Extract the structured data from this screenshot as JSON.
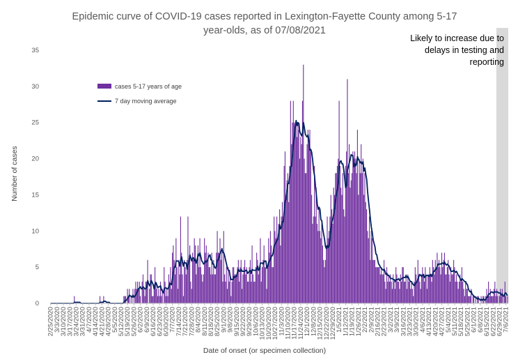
{
  "chart_data": {
    "type": "bar",
    "title_lines": [
      "Epidemic curve of COVID-19 cases reported in Lexington-Fayette County among 5-17",
      "year-olds, as of 07/08/2021"
    ],
    "xlabel": "Date of onset (or specimen collection)",
    "ylabel": "Number of cases",
    "ylim": [
      0,
      35
    ],
    "yticks": [
      0,
      5,
      10,
      15,
      20,
      25,
      30,
      35
    ],
    "x_start": "2/25/2020",
    "x_end": "7/8/2021",
    "x_tick_labels": [
      "2/25/2020",
      "3/3/2020",
      "3/10/2020",
      "3/17/2020",
      "3/24/2020",
      "3/31/2020",
      "4/7/2020",
      "4/14/2020",
      "4/21/2020",
      "4/28/2020",
      "5/5/2020",
      "5/12/2020",
      "5/19/2020",
      "5/26/2020",
      "6/2/2020",
      "6/9/2020",
      "6/16/2020",
      "6/23/2020",
      "6/30/2020",
      "7/7/2020",
      "7/14/2020",
      "7/21/2020",
      "7/28/2020",
      "8/4/2020",
      "8/11/2020",
      "8/18/2020",
      "8/25/2020",
      "9/1/2020",
      "9/8/2020",
      "9/15/2020",
      "9/22/2020",
      "9/29/2020",
      "10/6/2020",
      "10/13/2020",
      "10/20/2020",
      "10/27/2020",
      "11/3/2020",
      "11/10/2020",
      "11/17/2020",
      "11/24/2020",
      "12/1/2020",
      "12/8/2020",
      "12/15/2020",
      "12/22/2020",
      "12/29/2020",
      "1/5/2021",
      "1/12/2021",
      "1/19/2021",
      "1/26/2021",
      "2/2/2021",
      "2/9/2021",
      "2/16/2021",
      "2/23/2021",
      "3/2/2021",
      "3/9/2021",
      "3/16/2021",
      "3/23/2021",
      "3/30/2021",
      "4/6/2021",
      "4/13/2021",
      "4/20/2021",
      "4/27/2021",
      "5/4/2021",
      "5/11/2021",
      "5/18/2021",
      "5/25/2021",
      "6/1/2021",
      "6/8/2021",
      "6/15/2021",
      "6/22/2021",
      "6/29/2021",
      "7/6/2021"
    ],
    "grid": false,
    "legend_position": "upper-left inside plot",
    "series": [
      {
        "name": "cases 5-17 years of age",
        "kind": "bar",
        "color": "#7030A0",
        "weekly_daily_values": [
          [
            0,
            0,
            0,
            0,
            0,
            0,
            0
          ],
          [
            0,
            0,
            0,
            0,
            0,
            0,
            0
          ],
          [
            0,
            0,
            0,
            0,
            0,
            0,
            0
          ],
          [
            0,
            0,
            0,
            0,
            0,
            1,
            0
          ],
          [
            0,
            0,
            0,
            0,
            0,
            0,
            0
          ],
          [
            0,
            0,
            0,
            0,
            0,
            0,
            0
          ],
          [
            0,
            0,
            0,
            0,
            0,
            0,
            0
          ],
          [
            0,
            0,
            0,
            0,
            0,
            1,
            0
          ],
          [
            0,
            0,
            1,
            0,
            0,
            0,
            0
          ],
          [
            0,
            0,
            0,
            0,
            0,
            0,
            0
          ],
          [
            0,
            0,
            0,
            0,
            0,
            0,
            0
          ],
          [
            0,
            0,
            0,
            1,
            1,
            1,
            0
          ],
          [
            2,
            1,
            2,
            0,
            1,
            0,
            2
          ],
          [
            0,
            2,
            3,
            2,
            3,
            2,
            3
          ],
          [
            1,
            0,
            3,
            4,
            2,
            1,
            3
          ],
          [
            3,
            6,
            0,
            2,
            4,
            4,
            1
          ],
          [
            1,
            2,
            5,
            3,
            2,
            1,
            2
          ],
          [
            1,
            3,
            1,
            2,
            0,
            5,
            3
          ],
          [
            1,
            2,
            1,
            4,
            3,
            5,
            2
          ],
          [
            7,
            8,
            6,
            4,
            9,
            5,
            2
          ],
          [
            6,
            4,
            12,
            7,
            4,
            1,
            6
          ],
          [
            5,
            4,
            6,
            12,
            6,
            8,
            3
          ],
          [
            2,
            7,
            6,
            9,
            8,
            4,
            6
          ],
          [
            8,
            5,
            9,
            5,
            4,
            3,
            4
          ],
          [
            9,
            7,
            8,
            6,
            7,
            5,
            5
          ],
          [
            4,
            7,
            4,
            6,
            4,
            4,
            7
          ],
          [
            10,
            7,
            7,
            9,
            6,
            7,
            3
          ],
          [
            10,
            4,
            3,
            5,
            2,
            5,
            3
          ],
          [
            4,
            1,
            3,
            5,
            5,
            4,
            4
          ],
          [
            4,
            5,
            6,
            3,
            5,
            6,
            2
          ],
          [
            4,
            5,
            6,
            4,
            5,
            3,
            3
          ],
          [
            5,
            6,
            3,
            8,
            4,
            3,
            3
          ],
          [
            5,
            7,
            6,
            4,
            5,
            9,
            3
          ],
          [
            5,
            6,
            8,
            5,
            5,
            2,
            5
          ],
          [
            9,
            7,
            10,
            8,
            5,
            5,
            12
          ],
          [
            10,
            9,
            12,
            9,
            11,
            13,
            8
          ],
          [
            12,
            14,
            12,
            19,
            21,
            15,
            17
          ],
          [
            18,
            14,
            19,
            28,
            22,
            25,
            28
          ],
          [
            25,
            24,
            25,
            23,
            25,
            24,
            20
          ],
          [
            23,
            22,
            28,
            33,
            20,
            18,
            18
          ],
          [
            22,
            24,
            22,
            24,
            21,
            15,
            11
          ],
          [
            12,
            19,
            12,
            16,
            11,
            10,
            13
          ],
          [
            10,
            9,
            11,
            8,
            6,
            5,
            6
          ],
          [
            8,
            12,
            9,
            10,
            12,
            15,
            13
          ],
          [
            11,
            16,
            15,
            18,
            18,
            19,
            20
          ],
          [
            28,
            19,
            16,
            15,
            18,
            13,
            12
          ],
          [
            19,
            21,
            31,
            18,
            22,
            16,
            17
          ],
          [
            18,
            21,
            20,
            21,
            20,
            18,
            24
          ],
          [
            15,
            20,
            18,
            22,
            18,
            20,
            15
          ],
          [
            18,
            14,
            13,
            10,
            9,
            12,
            6
          ],
          [
            10,
            9,
            6,
            6,
            6,
            5,
            5
          ],
          [
            5,
            5,
            5,
            4,
            5,
            4,
            4
          ],
          [
            6,
            3,
            2,
            5,
            3,
            4,
            3
          ],
          [
            4,
            3,
            2,
            4,
            3,
            2,
            5
          ],
          [
            4,
            3,
            3,
            2,
            4,
            3,
            5
          ],
          [
            5,
            3,
            3,
            4,
            2,
            4,
            3
          ],
          [
            3,
            2,
            3,
            2,
            1,
            3,
            5
          ],
          [
            4,
            3,
            6,
            4,
            3,
            2,
            4
          ],
          [
            5,
            4,
            3,
            5,
            4,
            2,
            4
          ],
          [
            4,
            5,
            4,
            3,
            6,
            5,
            4
          ],
          [
            6,
            5,
            7,
            5,
            6,
            5,
            4
          ],
          [
            7,
            5,
            6,
            7,
            4,
            4,
            5
          ],
          [
            6,
            4,
            3,
            5,
            4,
            4,
            6
          ],
          [
            5,
            3,
            4,
            3,
            2,
            3,
            4
          ],
          [
            3,
            5,
            3,
            2,
            1,
            3,
            2
          ],
          [
            2,
            1,
            1,
            1,
            2,
            0,
            1
          ],
          [
            1,
            0,
            1,
            0,
            1,
            1,
            0
          ],
          [
            0,
            1,
            0,
            1,
            1,
            0,
            1
          ],
          [
            2,
            1,
            3,
            1,
            2,
            1,
            1
          ],
          [
            1,
            2,
            3,
            1,
            2,
            1,
            0
          ],
          [
            1,
            2,
            1,
            2,
            0,
            1,
            3
          ],
          [
            1,
            0,
            1
          ]
        ]
      },
      {
        "name": "7 day moving average",
        "kind": "line",
        "color": "#002060"
      }
    ],
    "annotation": {
      "lines": [
        "Likely to increase due to",
        "delays in testing and",
        "reporting"
      ],
      "shaded_from": "6/26/2021",
      "shaded_to": "7/8/2021",
      "shade_color": "#D9D9D9"
    }
  }
}
